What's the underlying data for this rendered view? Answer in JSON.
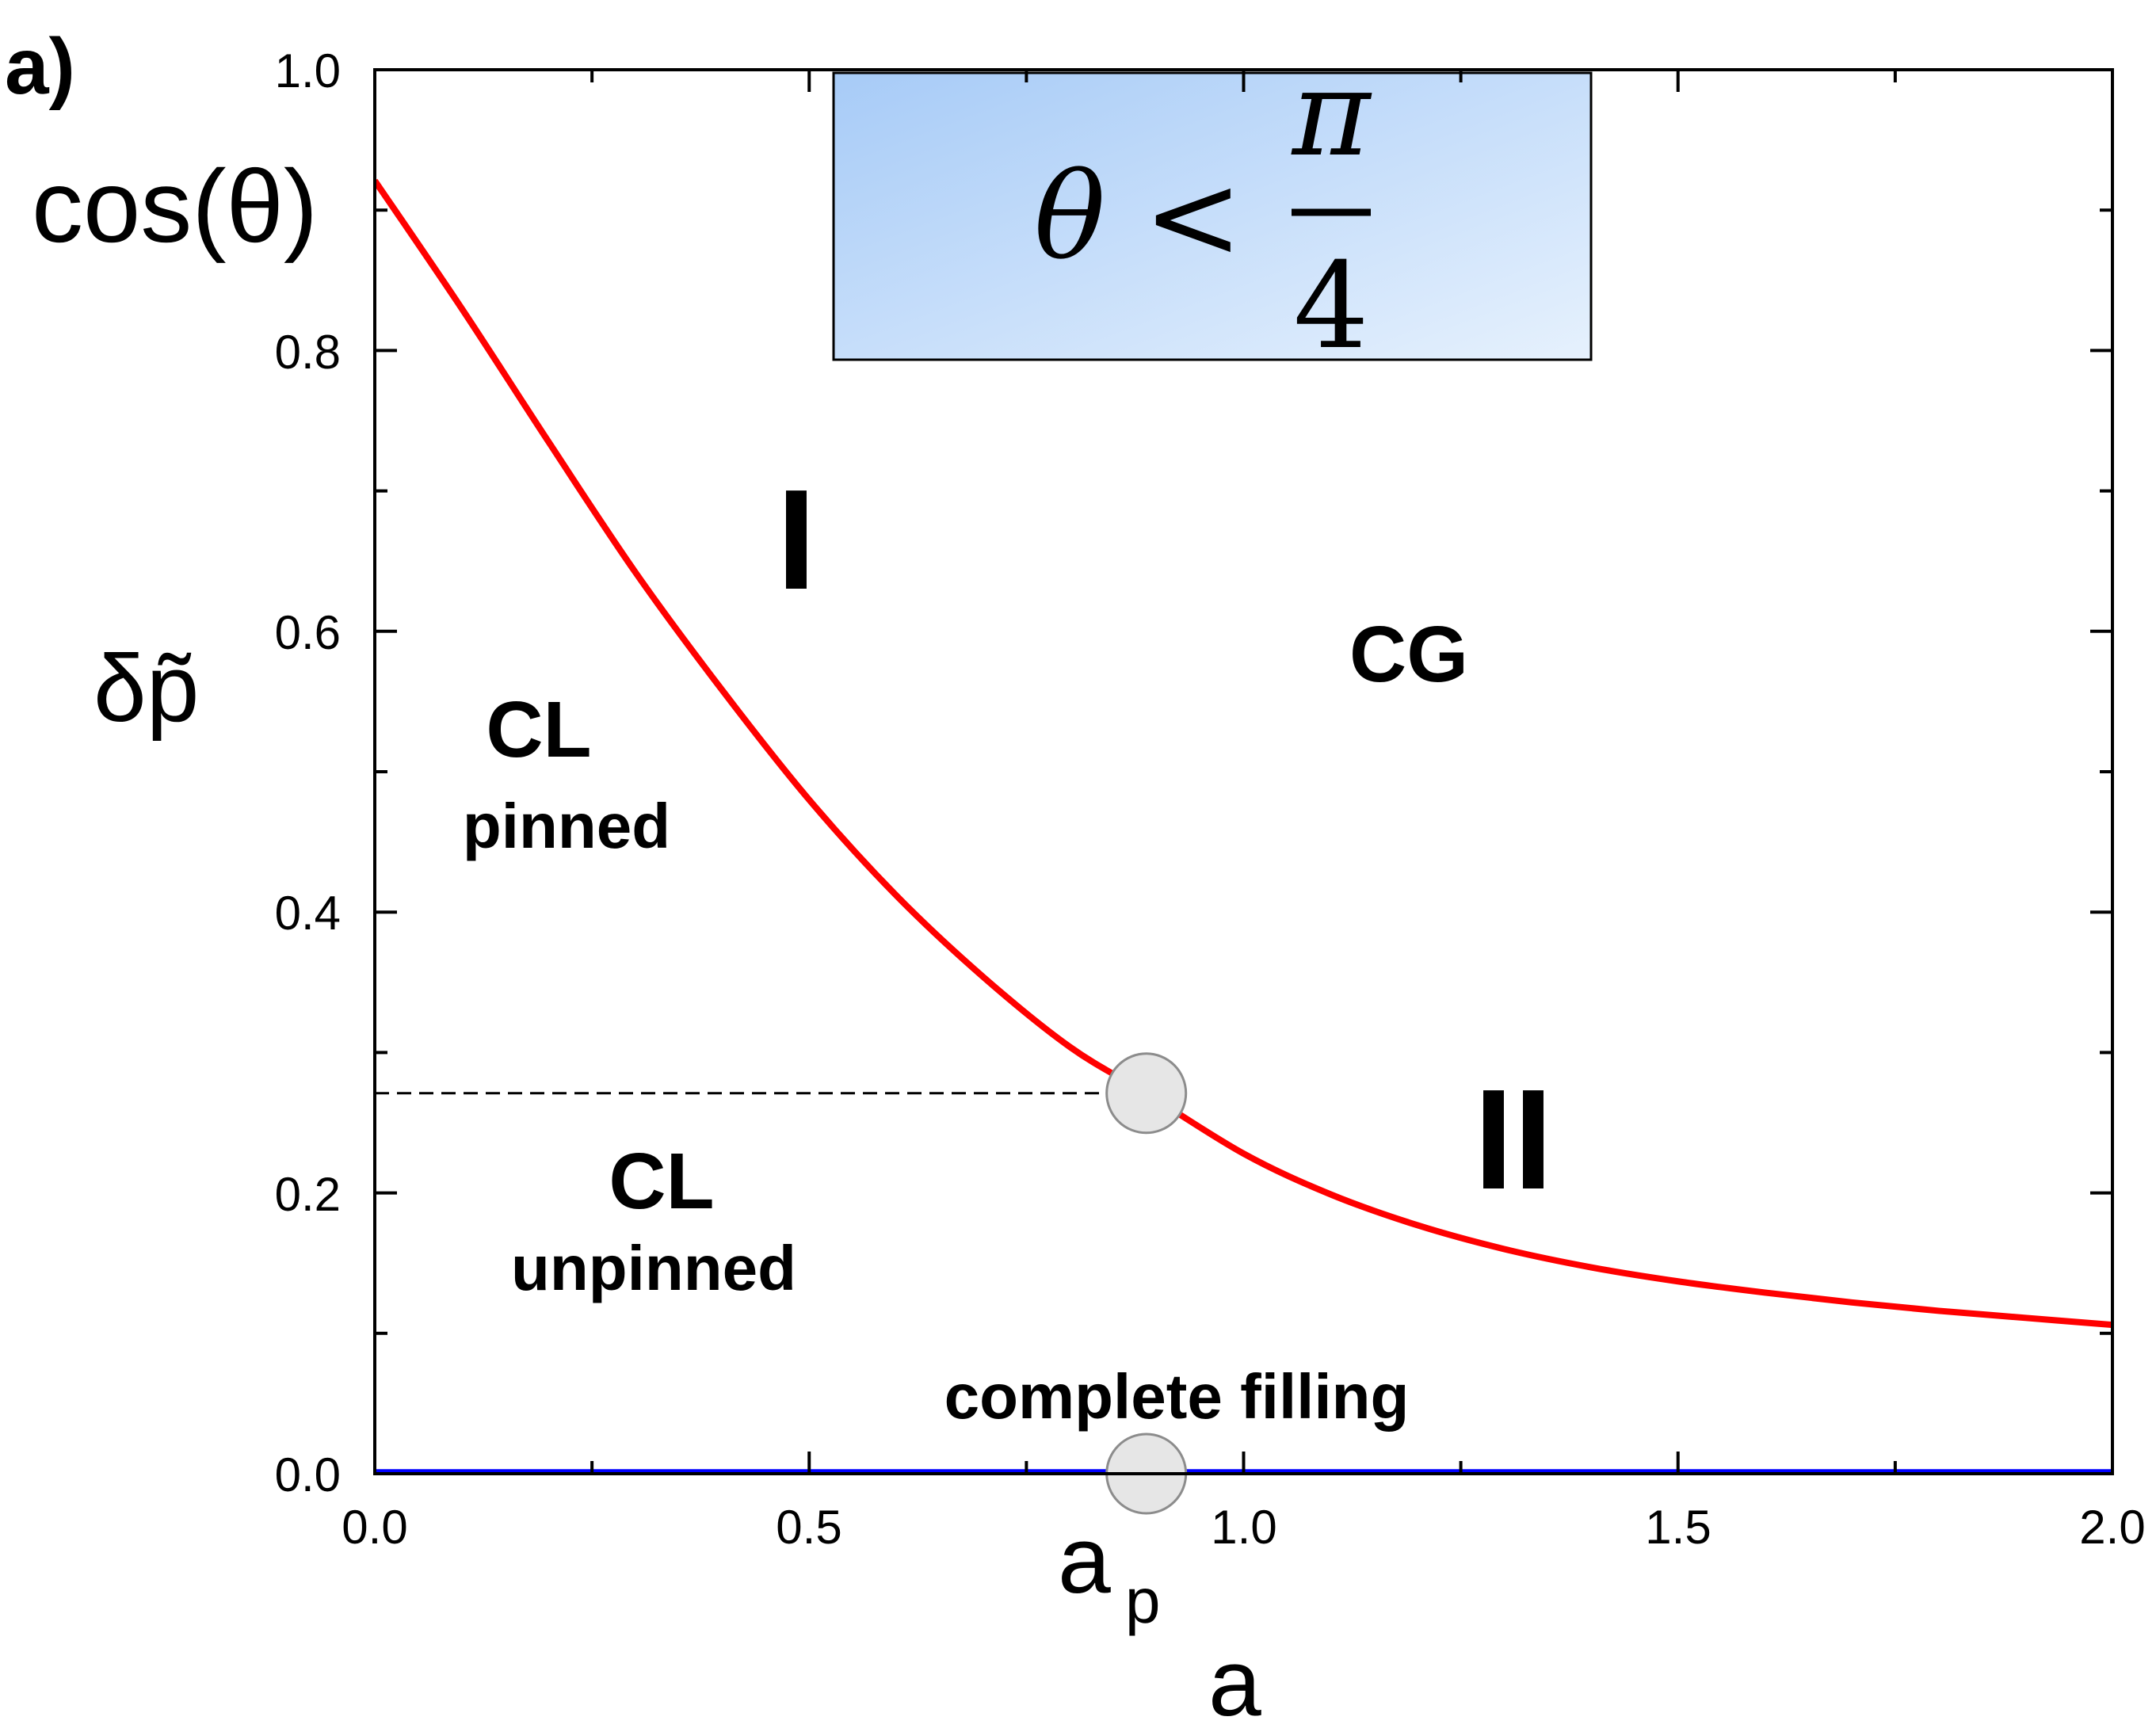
{
  "panel_label": "a)",
  "chart_data": {
    "type": "line",
    "xlabel": "a",
    "ylabel": "δp̃",
    "xlim": [
      0,
      2
    ],
    "ylim": [
      0,
      1
    ],
    "x_ticks": [
      "0.0",
      "0.5",
      "1.0",
      "1.5",
      "2.0"
    ],
    "y_ticks": [
      "0.0",
      "0.2",
      "0.4",
      "0.6",
      "0.8",
      "1.0"
    ],
    "x_tick_values": [
      0,
      0.5,
      1.0,
      1.5,
      2.0
    ],
    "y_tick_values": [
      0,
      0.2,
      0.4,
      0.6,
      0.8,
      1.0
    ],
    "series": [
      {
        "name": "upper boundary",
        "color": "#ff0000",
        "x": [
          0,
          0.1,
          0.2,
          0.3,
          0.4,
          0.5,
          0.6,
          0.7,
          0.8,
          0.888,
          1.0,
          1.1,
          1.2,
          1.3,
          1.4,
          1.5,
          1.6,
          1.7,
          1.8,
          1.9,
          2.0
        ],
        "y": [
          0.921,
          0.83,
          0.735,
          0.642,
          0.558,
          0.48,
          0.412,
          0.354,
          0.304,
          0.271,
          0.228,
          0.199,
          0.177,
          0.16,
          0.147,
          0.137,
          0.129,
          0.122,
          0.116,
          0.111,
          0.106
        ]
      },
      {
        "name": "complete filling line",
        "color": "#0000ff",
        "x": [
          0,
          2
        ],
        "y": [
          0.001,
          0.001
        ]
      }
    ],
    "reference_line": {
      "y": 0.271,
      "x_end": 0.888,
      "style": "dashed"
    },
    "markers": [
      {
        "name": "critical point",
        "x": 0.888,
        "y": 0.271
      },
      {
        "name": "a_p point",
        "x": 0.888,
        "y": 0.0
      }
    ],
    "annotations": {
      "cos_theta": "cos(θ)",
      "a_p_base": "a",
      "a_p_sub": "p",
      "region_I": "I",
      "region_II": "II",
      "CG": "CG",
      "CL_pinned_title": "CL",
      "CL_pinned_sub": "pinned",
      "CL_unpinned_title": "CL",
      "CL_unpinned_sub": "unpinned",
      "complete_filling": "complete filling",
      "condition_lhs": "θ <",
      "condition_num": "π",
      "condition_den": "4"
    },
    "colors": {
      "box_fill_start": "#a7cbf7",
      "box_fill_end": "#e6f1fd",
      "marker_fill": "#e6e6e6",
      "marker_stroke": "#8c8c8c"
    }
  }
}
